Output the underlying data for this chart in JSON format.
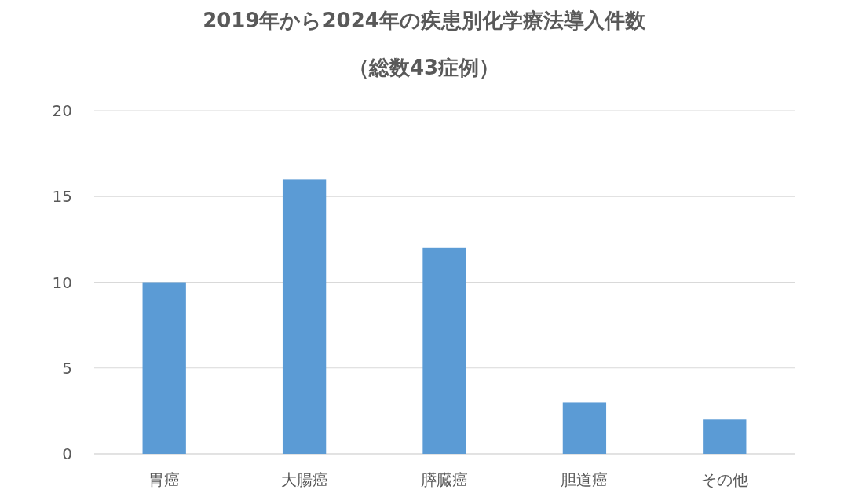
{
  "chart_data": {
    "type": "bar",
    "title": "2019年から2024年の疾患別化学療法導入件数",
    "subtitle": "（総数43症例）",
    "categories": [
      "胃癌",
      "大腸癌",
      "膵臓癌",
      "胆道癌",
      "その他"
    ],
    "values": [
      10,
      16,
      12,
      3,
      2
    ],
    "color": "#5b9bd5",
    "ylim": [
      0,
      20
    ],
    "yticks": [
      0,
      5,
      10,
      15,
      20
    ],
    "grid": "y"
  }
}
